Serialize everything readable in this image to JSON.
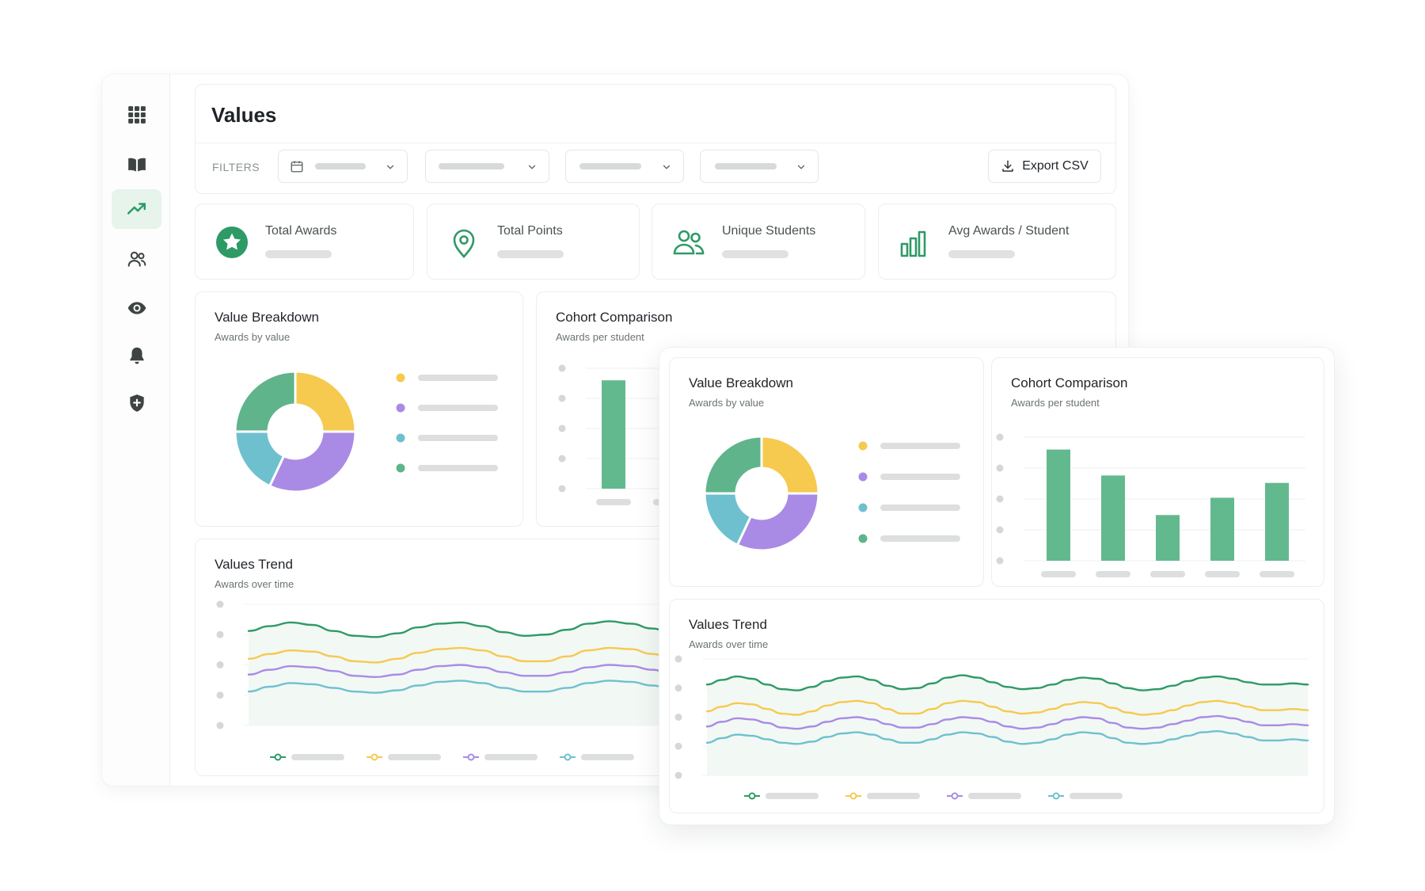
{
  "page": {
    "title": "Values"
  },
  "sidebar": {
    "items": [
      {
        "name": "apps",
        "icon": "grid-icon",
        "active": false
      },
      {
        "name": "library",
        "icon": "book-icon",
        "active": false
      },
      {
        "name": "trends",
        "icon": "trending-up-icon",
        "active": true
      },
      {
        "name": "students",
        "icon": "users-icon",
        "active": false
      },
      {
        "name": "visibility",
        "icon": "eye-icon",
        "active": false
      },
      {
        "name": "notifications",
        "icon": "bell-icon",
        "active": false
      },
      {
        "name": "security",
        "icon": "shield-plus-icon",
        "active": false
      }
    ]
  },
  "filters": {
    "label": "FILTERS",
    "selects": [
      {
        "icon": "calendar-icon",
        "value": ""
      },
      {
        "value": ""
      },
      {
        "value": ""
      },
      {
        "value": ""
      }
    ],
    "export_label": "Export CSV",
    "export_icon": "download-icon"
  },
  "kpis": [
    {
      "label": "Total Awards",
      "icon": "star-badge-icon",
      "value": ""
    },
    {
      "label": "Total Points",
      "icon": "location-pin-icon",
      "value": ""
    },
    {
      "label": "Unique Students",
      "icon": "users-icon",
      "value": ""
    },
    {
      "label": "Avg Awards / Student",
      "icon": "bar-chart-icon",
      "value": ""
    }
  ],
  "colors": {
    "green": "#2e9a66",
    "green_bar": "#63b98e",
    "green_soft": "#5fb48b",
    "yellow": "#f6c94f",
    "purple": "#a98be6",
    "teal": "#6fc0cf",
    "active_nav": "#e6f4ec"
  },
  "cards": {
    "breakdown": {
      "title": "Value Breakdown",
      "subtitle": "Awards by value"
    },
    "cohort": {
      "title": "Cohort Comparison",
      "subtitle": "Awards per student"
    },
    "trend": {
      "title": "Values Trend",
      "subtitle": "Awards over time"
    }
  },
  "chart_data": [
    {
      "id": "value-breakdown",
      "type": "pie",
      "title": "Value Breakdown",
      "subtitle": "Awards by value",
      "donut": true,
      "slices": [
        {
          "value": 25,
          "color": "#f6c94f",
          "label": ""
        },
        {
          "value": 32,
          "color": "#a98be6",
          "label": ""
        },
        {
          "value": 18,
          "color": "#6fc0cf",
          "label": ""
        },
        {
          "value": 25,
          "color": "#5fb48b",
          "label": ""
        }
      ],
      "legend": "right"
    },
    {
      "id": "cohort-comparison",
      "type": "bar",
      "title": "Cohort Comparison",
      "subtitle": "Awards per student",
      "categories": [
        "",
        "",
        "",
        "",
        ""
      ],
      "values": [
        90,
        69,
        37,
        51,
        63
      ],
      "ylim": [
        0,
        100
      ],
      "grid": true
    },
    {
      "id": "values-trend",
      "type": "line",
      "title": "Values Trend",
      "subtitle": "Awards over time",
      "x": [
        0,
        0.5,
        1,
        1.5,
        2,
        2.5,
        3,
        3.5,
        4,
        4.5,
        5,
        5.5,
        6,
        6.5,
        7,
        7.5,
        8,
        8.5,
        9,
        9.5,
        10,
        10.5,
        11,
        11.5,
        12,
        12.5,
        13,
        13.5,
        14,
        14.5,
        15,
        15.5,
        16,
        16.5,
        17,
        17.5,
        18,
        18.5,
        19,
        19.5,
        20
      ],
      "series": [
        {
          "color": "#2e9a66",
          "values": [
            78,
            82,
            85,
            83,
            78,
            74,
            73,
            76,
            81,
            84,
            85,
            82,
            77,
            74,
            75,
            79,
            84,
            86,
            84,
            80,
            76,
            74,
            75,
            78,
            82,
            84,
            83,
            79,
            75,
            73,
            74,
            77,
            81,
            84,
            85,
            83,
            80,
            78,
            78,
            79,
            78
          ]
        },
        {
          "color": "#f6c94f",
          "values": [
            55,
            59,
            62,
            61,
            57,
            53,
            52,
            55,
            60,
            63,
            64,
            62,
            57,
            53,
            53,
            57,
            62,
            64,
            63,
            59,
            55,
            53,
            54,
            57,
            61,
            63,
            62,
            58,
            54,
            52,
            53,
            56,
            60,
            63,
            64,
            62,
            59,
            56,
            56,
            57,
            56
          ]
        },
        {
          "color": "#a98be6",
          "values": [
            42,
            46,
            49,
            48,
            45,
            41,
            40,
            42,
            46,
            49,
            50,
            48,
            44,
            41,
            41,
            44,
            48,
            50,
            49,
            46,
            42,
            40,
            41,
            44,
            48,
            50,
            49,
            45,
            41,
            40,
            41,
            44,
            47,
            50,
            51,
            49,
            46,
            43,
            43,
            44,
            43
          ]
        },
        {
          "color": "#6fc0cf",
          "values": [
            28,
            32,
            35,
            34,
            31,
            28,
            27,
            29,
            33,
            36,
            37,
            35,
            31,
            28,
            28,
            31,
            35,
            37,
            36,
            33,
            29,
            27,
            28,
            31,
            35,
            37,
            36,
            32,
            28,
            27,
            28,
            31,
            34,
            37,
            38,
            36,
            33,
            30,
            30,
            31,
            30
          ]
        }
      ],
      "ylim": [
        0,
        100
      ],
      "grid": true,
      "area_fill": true,
      "legend": "bottom"
    }
  ]
}
